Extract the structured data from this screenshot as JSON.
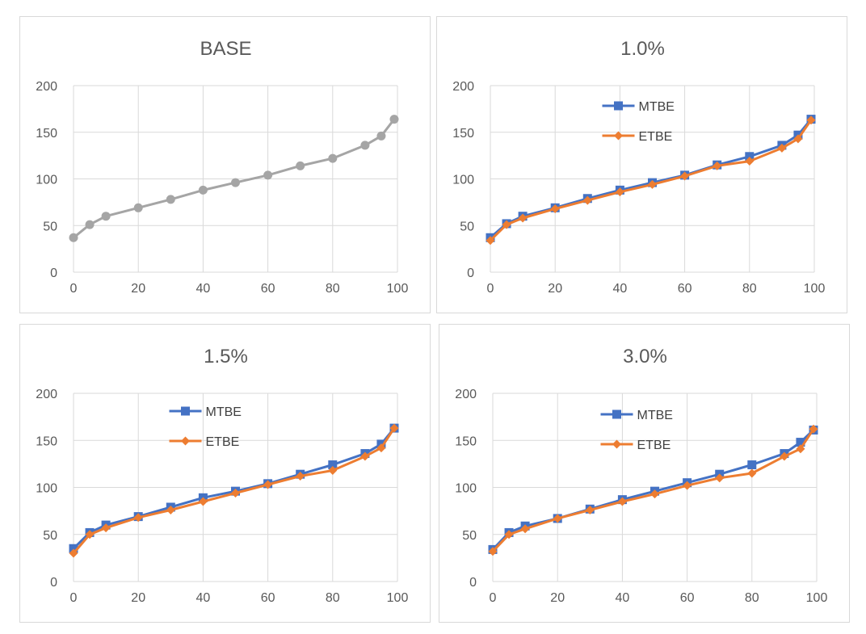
{
  "chart_data": [
    {
      "type": "line",
      "title": "BASE",
      "xlim": [
        0,
        100
      ],
      "ylim": [
        0,
        200
      ],
      "xticks": [
        "0",
        "20",
        "40",
        "60",
        "80",
        "100"
      ],
      "yticks": [
        "0",
        "50",
        "100",
        "150",
        "200"
      ],
      "grid": true,
      "legend": null,
      "series": [
        {
          "color": "#a5a5a5",
          "marker": "circle",
          "x": [
            0,
            5,
            10,
            20,
            30,
            40,
            50,
            60,
            70,
            80,
            90,
            95,
            99
          ],
          "y": [
            37,
            51,
            60,
            69,
            78,
            88,
            96,
            104,
            114,
            122,
            136,
            146,
            164
          ]
        }
      ]
    },
    {
      "type": "line",
      "title": "1.0%",
      "xlim": [
        0,
        100
      ],
      "ylim": [
        0,
        200
      ],
      "xticks": [
        "0",
        "20",
        "40",
        "60",
        "80",
        "100"
      ],
      "yticks": [
        "0",
        "50",
        "100",
        "150",
        "200"
      ],
      "grid": true,
      "legend": "top-center",
      "series": [
        {
          "name": "MTBE",
          "color": "#4472c4",
          "marker": "square",
          "x": [
            0,
            5,
            10,
            20,
            30,
            40,
            50,
            60,
            70,
            80,
            90,
            95,
            99
          ],
          "y": [
            37,
            52,
            60,
            69,
            79,
            88,
            96,
            104,
            115,
            124,
            136,
            147,
            164
          ]
        },
        {
          "name": "ETBE",
          "color": "#ed7d31",
          "marker": "diamond",
          "x": [
            0,
            5,
            10,
            20,
            30,
            40,
            50,
            60,
            70,
            80,
            90,
            95,
            99
          ],
          "y": [
            34,
            51,
            58,
            68,
            77,
            86,
            94,
            103,
            114,
            119,
            133,
            143,
            163
          ]
        }
      ]
    },
    {
      "type": "line",
      "title": "1.5%",
      "xlim": [
        0,
        100
      ],
      "ylim": [
        0,
        200
      ],
      "xticks": [
        "0",
        "20",
        "40",
        "60",
        "80",
        "100"
      ],
      "yticks": [
        "0",
        "50",
        "100",
        "150",
        "200"
      ],
      "grid": true,
      "legend": "top-center",
      "series": [
        {
          "name": "MTBE",
          "color": "#4472c4",
          "marker": "square",
          "x": [
            0,
            5,
            10,
            20,
            30,
            40,
            50,
            60,
            70,
            80,
            90,
            95,
            99
          ],
          "y": [
            35,
            52,
            60,
            69,
            79,
            89,
            96,
            104,
            114,
            124,
            136,
            146,
            163
          ]
        },
        {
          "name": "ETBE",
          "color": "#ed7d31",
          "marker": "diamond",
          "x": [
            0,
            5,
            10,
            20,
            30,
            40,
            50,
            60,
            70,
            80,
            90,
            95,
            99
          ],
          "y": [
            30,
            50,
            57,
            68,
            76,
            85,
            94,
            103,
            112,
            118,
            133,
            142,
            163
          ]
        }
      ]
    },
    {
      "type": "line",
      "title": "3.0%",
      "xlim": [
        0,
        100
      ],
      "ylim": [
        0,
        200
      ],
      "xticks": [
        "0",
        "20",
        "40",
        "60",
        "80",
        "100"
      ],
      "yticks": [
        "0",
        "50",
        "100",
        "150",
        "200"
      ],
      "grid": true,
      "legend": "top-center",
      "series": [
        {
          "name": "MTBE",
          "color": "#4472c4",
          "marker": "square",
          "x": [
            0,
            5,
            10,
            20,
            30,
            40,
            50,
            60,
            70,
            80,
            90,
            95,
            99
          ],
          "y": [
            34,
            52,
            59,
            67,
            77,
            87,
            96,
            105,
            114,
            124,
            136,
            148,
            161
          ]
        },
        {
          "name": "ETBE",
          "color": "#ed7d31",
          "marker": "diamond",
          "x": [
            0,
            5,
            10,
            20,
            30,
            40,
            50,
            60,
            70,
            80,
            90,
            95,
            99
          ],
          "y": [
            32,
            50,
            56,
            67,
            76,
            85,
            93,
            102,
            110,
            115,
            133,
            141,
            162
          ]
        }
      ]
    }
  ]
}
